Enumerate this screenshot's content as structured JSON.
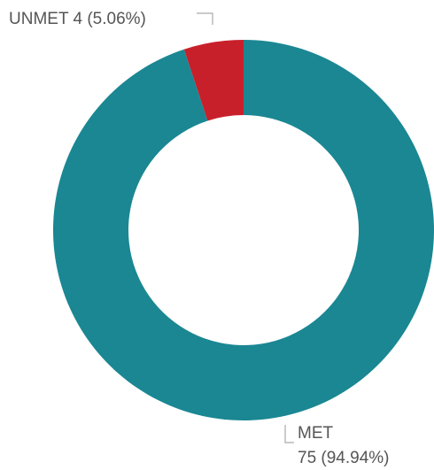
{
  "chart_data": {
    "type": "donut",
    "categories": [
      "MET",
      "UNMET"
    ],
    "values": [
      75,
      4
    ],
    "value_labels": [
      "75 (94.94%)",
      "4 (5.06%)"
    ],
    "colors": [
      "#1a8793",
      "#c8202b"
    ]
  }
}
